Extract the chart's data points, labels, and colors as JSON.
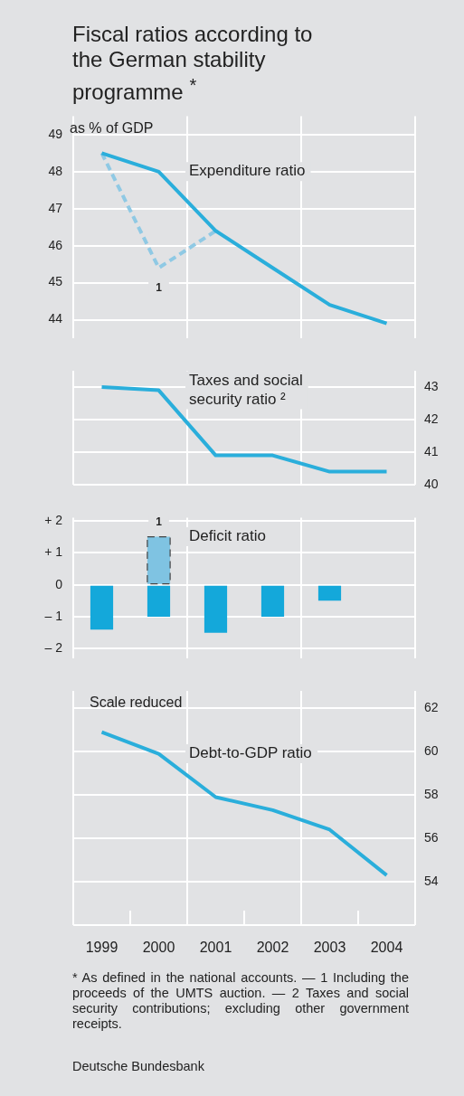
{
  "chart_data": [
    {
      "type": "line",
      "title": "Fiscal ratios according to the German stability programme $^{*}$",
      "ylabel": "as % of GDP",
      "categories": [
        "1999",
        "2000",
        "2001",
        "2002",
        "2003",
        "2004"
      ],
      "series": [
        {
          "name": "Expenditure ratio",
          "color": "#2aaedb",
          "values": [
            48.5,
            48.0,
            46.4,
            45.4,
            44.4,
            43.9
          ]
        },
        {
          "color": "#8fc9e4",
          "line_style": "dashed",
          "values": [
            48.5,
            45.4,
            46.4,
            null,
            null,
            null
          ]
        }
      ],
      "ylim": [
        43.5,
        49.5
      ],
      "yticks": [
        44,
        45,
        46,
        47,
        48,
        49
      ],
      "grid": true,
      "tick_labels": "y",
      "marker": "none",
      "annotations": [
        {
          "text": "1",
          "x": "2000",
          "y": 45.4
        }
      ]
    },
    {
      "type": "line",
      "categories": [
        "1999",
        "2000",
        "2001",
        "2002",
        "2003",
        "2004"
      ],
      "series": [
        {
          "name": "Taxes and social security ratio ²",
          "color": "#2aaedb",
          "axis": "y2",
          "values": [
            43.0,
            42.9,
            40.9,
            40.9,
            40.4,
            40.4
          ]
        }
      ],
      "y2lim": [
        40,
        43.5
      ],
      "y2ticks": [
        40,
        41,
        42,
        43
      ],
      "grid": true,
      "tick_labels": "y",
      "marker": "none"
    },
    {
      "type": "bar",
      "stacked": true,
      "categories": [
        "1999",
        "2000",
        "2001",
        "2002",
        "2003",
        "2004"
      ],
      "series": [
        {
          "name": "Deficit ratio",
          "color": "#14a8da",
          "values": [
            -1.4,
            -1.0,
            -1.5,
            -1.0,
            -0.5,
            null
          ]
        },
        {
          "color": "#7fc3e2",
          "line_style": "dashed",
          "values": [
            null,
            1.5,
            null,
            null,
            null,
            null
          ]
        }
      ],
      "ylim": [
        -2.3,
        2.1
      ],
      "yticks": [
        {
          "value": 2,
          "label": "+ 2"
        },
        {
          "value": 1,
          "label": "+ 1"
        },
        0,
        {
          "value": -1,
          "label": "– 1"
        },
        {
          "value": -2,
          "label": "– 2"
        }
      ],
      "grid": true,
      "tick_labels": "y",
      "annotations": [
        {
          "text": "1",
          "x": "2000",
          "y": 1.5
        }
      ]
    },
    {
      "type": "line",
      "ylabel": "Scale reduced",
      "categories": [
        "1999",
        "2000",
        "2001",
        "2002",
        "2003",
        "2004"
      ],
      "series": [
        {
          "name": "Debt-to-GDP ratio",
          "color": "#2aaedb",
          "axis": "y2",
          "values": [
            60.9,
            59.9,
            57.9,
            57.3,
            56.4,
            54.3
          ]
        }
      ],
      "y2lim": [
        52,
        62.8
      ],
      "y2ticks": [
        54,
        56,
        58,
        60,
        62
      ],
      "grid": true,
      "marker": "none",
      "annotations": [
        "* As defined in the national accounts. — 1 Including the proceeds of the UMTS auction. — 2 Taxes and social security contributions; excluding other government receipts.",
        "Deutsche Bundesbank"
      ]
    }
  ]
}
